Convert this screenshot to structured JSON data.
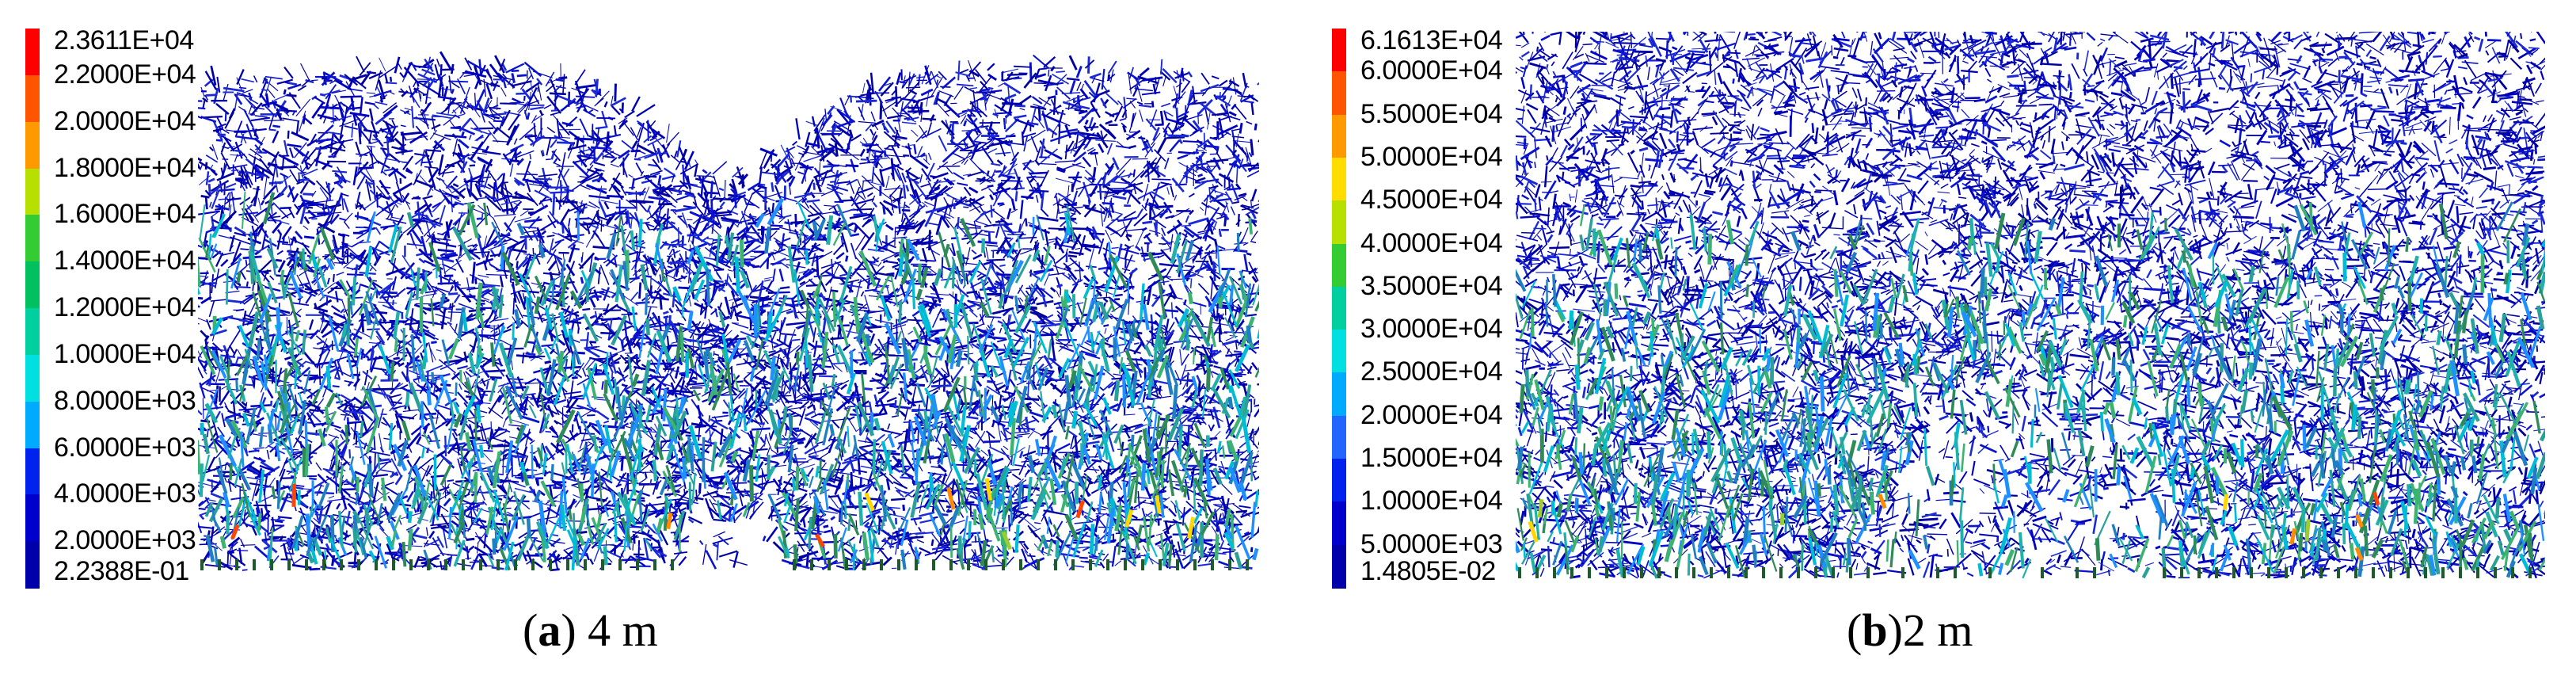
{
  "panels": [
    {
      "caption_letter": "a",
      "caption_suffix": " 4 m",
      "colorbar_labels": [
        "2.3611E+04",
        "2.2000E+04",
        "2.0000E+04",
        "1.8000E+04",
        "1.6000E+04",
        "1.4000E+04",
        "1.2000E+04",
        "1.0000E+04",
        "8.0000E+03",
        "6.0000E+03",
        "4.0000E+03",
        "2.0000E+03",
        "2.2388E-01"
      ],
      "shape": "two-domes"
    },
    {
      "caption_letter": "b",
      "caption_suffix": "2 m",
      "colorbar_labels": [
        "6.1613E+04",
        "6.0000E+04",
        "5.5000E+04",
        "5.0000E+04",
        "4.5000E+04",
        "4.0000E+04",
        "3.5000E+04",
        "3.0000E+04",
        "2.5000E+04",
        "2.0000E+04",
        "1.5000E+04",
        "1.0000E+04",
        "5.0000E+03",
        "1.4805E-02"
      ],
      "shape": "flat-top"
    }
  ],
  "colorbar_colors": [
    "#ff0000",
    "#ff5500",
    "#ff9900",
    "#ffdd00",
    "#b7e000",
    "#33cc33",
    "#00c060",
    "#00d0a0",
    "#00e0e0",
    "#00aaff",
    "#2266ff",
    "#0022ee",
    "#0000cc",
    "#0000aa"
  ]
}
